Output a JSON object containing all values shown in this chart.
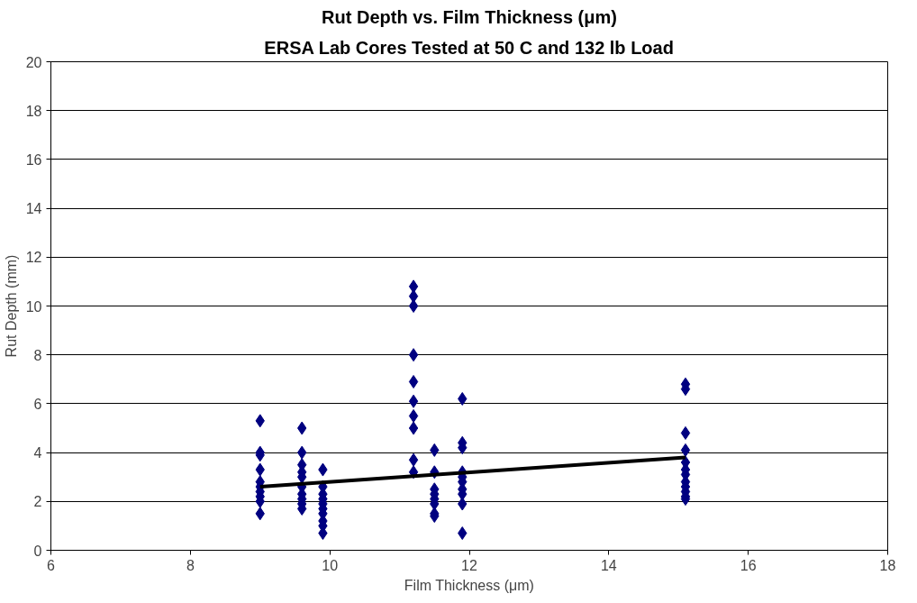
{
  "chart_data": {
    "type": "scatter",
    "title": "Rut Depth vs. Film Thickness (μm)",
    "subtitle": "ERSA Lab Cores Tested at 50 C and 132 lb Load",
    "xlabel": "Film Thickness (μm)",
    "ylabel": "Rut Depth (mm)",
    "xlim": [
      6,
      18
    ],
    "xticks": [
      6,
      8,
      10,
      12,
      14,
      16,
      18
    ],
    "ylim": [
      0,
      20
    ],
    "yticks": [
      0,
      2,
      4,
      6,
      8,
      10,
      12,
      14,
      16,
      18,
      20
    ],
    "grid": "y",
    "marker": "diamond",
    "series": [
      {
        "color": "#000080",
        "x": [
          9.0,
          9.0,
          9.0,
          9.0,
          9.0,
          9.0,
          9.0,
          9.0,
          9.0,
          9.0,
          9.6,
          9.6,
          9.6,
          9.6,
          9.6,
          9.6,
          9.6,
          9.6,
          9.6,
          9.6,
          9.9,
          9.9,
          9.9,
          9.9,
          9.9,
          9.9,
          9.9,
          9.9,
          9.9,
          9.9,
          11.2,
          11.2,
          11.2,
          11.2,
          11.2,
          11.2,
          11.2,
          11.2,
          11.2,
          11.2,
          11.5,
          11.5,
          11.5,
          11.5,
          11.5,
          11.5,
          11.5,
          11.5,
          11.9,
          11.9,
          11.9,
          11.9,
          11.9,
          11.9,
          11.9,
          11.9,
          11.9,
          11.9,
          15.1,
          15.1,
          15.1,
          15.1,
          15.1,
          15.1,
          15.1,
          15.1,
          15.1,
          15.1,
          15.1,
          15.1
        ],
        "values": [
          5.3,
          4.0,
          3.9,
          3.3,
          2.8,
          2.6,
          2.4,
          2.2,
          2.0,
          1.5,
          5.0,
          4.0,
          3.5,
          3.2,
          3.0,
          2.6,
          2.3,
          2.1,
          1.9,
          1.7,
          3.3,
          2.6,
          2.3,
          2.1,
          1.9,
          1.7,
          1.5,
          1.2,
          1.0,
          0.7,
          10.8,
          10.4,
          10.0,
          8.0,
          6.9,
          6.1,
          5.5,
          5.0,
          3.7,
          3.2,
          4.1,
          3.2,
          2.5,
          2.3,
          2.1,
          1.9,
          1.5,
          1.4,
          6.2,
          4.4,
          4.2,
          3.2,
          3.0,
          2.8,
          2.5,
          2.3,
          1.9,
          0.7,
          6.8,
          6.6,
          4.8,
          4.1,
          3.6,
          3.3,
          3.1,
          2.8,
          2.6,
          2.4,
          2.2,
          2.1
        ]
      },
      {
        "type": "line",
        "color": "#000000",
        "x": [
          9.0,
          15.1
        ],
        "values": [
          2.6,
          3.8
        ],
        "marker": "none"
      }
    ]
  }
}
